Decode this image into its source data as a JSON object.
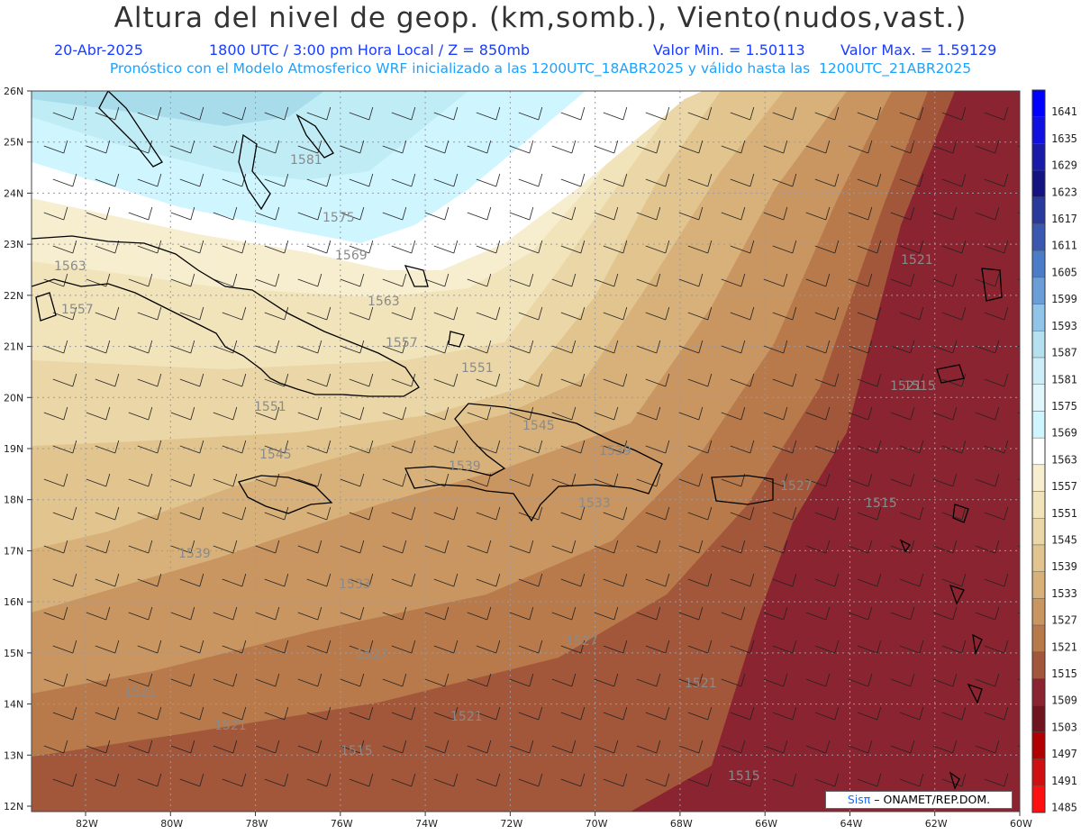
{
  "header": {
    "title": "Altura del nivel de geop. (km,somb.), Viento(nudos,vast.)",
    "date": "20-Abr-2025",
    "time": "1800 UTC / 3:00 pm Hora Local / Z = 850mb",
    "min": "Valor Min. = 1.50113",
    "max": "Valor Max. = 1.59129",
    "model": "Pronóstico con el Modelo Atmosferico WRF inicializado a las 1200UTC_18ABR2025 y válido hasta las  1200UTC_21ABR2025"
  },
  "axes": {
    "lat_labels": [
      "26N",
      "25N",
      "24N",
      "23N",
      "22N",
      "21N",
      "20N",
      "19N",
      "18N",
      "17N",
      "16N",
      "15N",
      "14N",
      "13N",
      "12N"
    ],
    "lon_labels": [
      "82W",
      "80W",
      "78W",
      "76W",
      "74W",
      "72W",
      "70W",
      "68W",
      "66W",
      "64W",
      "62W",
      "60W"
    ]
  },
  "colorbar": {
    "levels": [
      "1641",
      "1635",
      "1629",
      "1623",
      "1617",
      "1611",
      "1605",
      "1599",
      "1593",
      "1587",
      "1581",
      "1575",
      "1569",
      "1563",
      "1557",
      "1551",
      "1545",
      "1539",
      "1533",
      "1527",
      "1521",
      "1515",
      "1509",
      "1503",
      "1497",
      "1491",
      "1485"
    ],
    "colors": [
      "#0000ff",
      "#1010e0",
      "#1a1aa8",
      "#141480",
      "#2a3a9c",
      "#3a58b0",
      "#4a7cc8",
      "#6a9ed8",
      "#90c4e8",
      "#b4e0f0",
      "#cdeef6",
      "#e0f6fb",
      "#cff6ff",
      "#ffffff",
      "#f7eed0",
      "#f1e4bb",
      "#ead6a6",
      "#e2c58e",
      "#d7b179",
      "#c99560",
      "#b87a4b",
      "#a2573b",
      "#8a2430",
      "#6e1520",
      "#b00000",
      "#d01010",
      "#ff1010"
    ]
  },
  "contour_labels": [
    "1581",
    "1575",
    "1569",
    "1563",
    "1563",
    "1557",
    "1557",
    "1551",
    "1551",
    "1545",
    "1545",
    "1539",
    "1539",
    "1539",
    "1533",
    "1533",
    "1527",
    "1527",
    "1527",
    "1521",
    "1521",
    "1521",
    "1521",
    "1521",
    "1521",
    "1515",
    "1515",
    "1515",
    "1515"
  ],
  "credit": {
    "sis": "Sisπ",
    "rest": "– ONAMET/REP.DOM."
  }
}
